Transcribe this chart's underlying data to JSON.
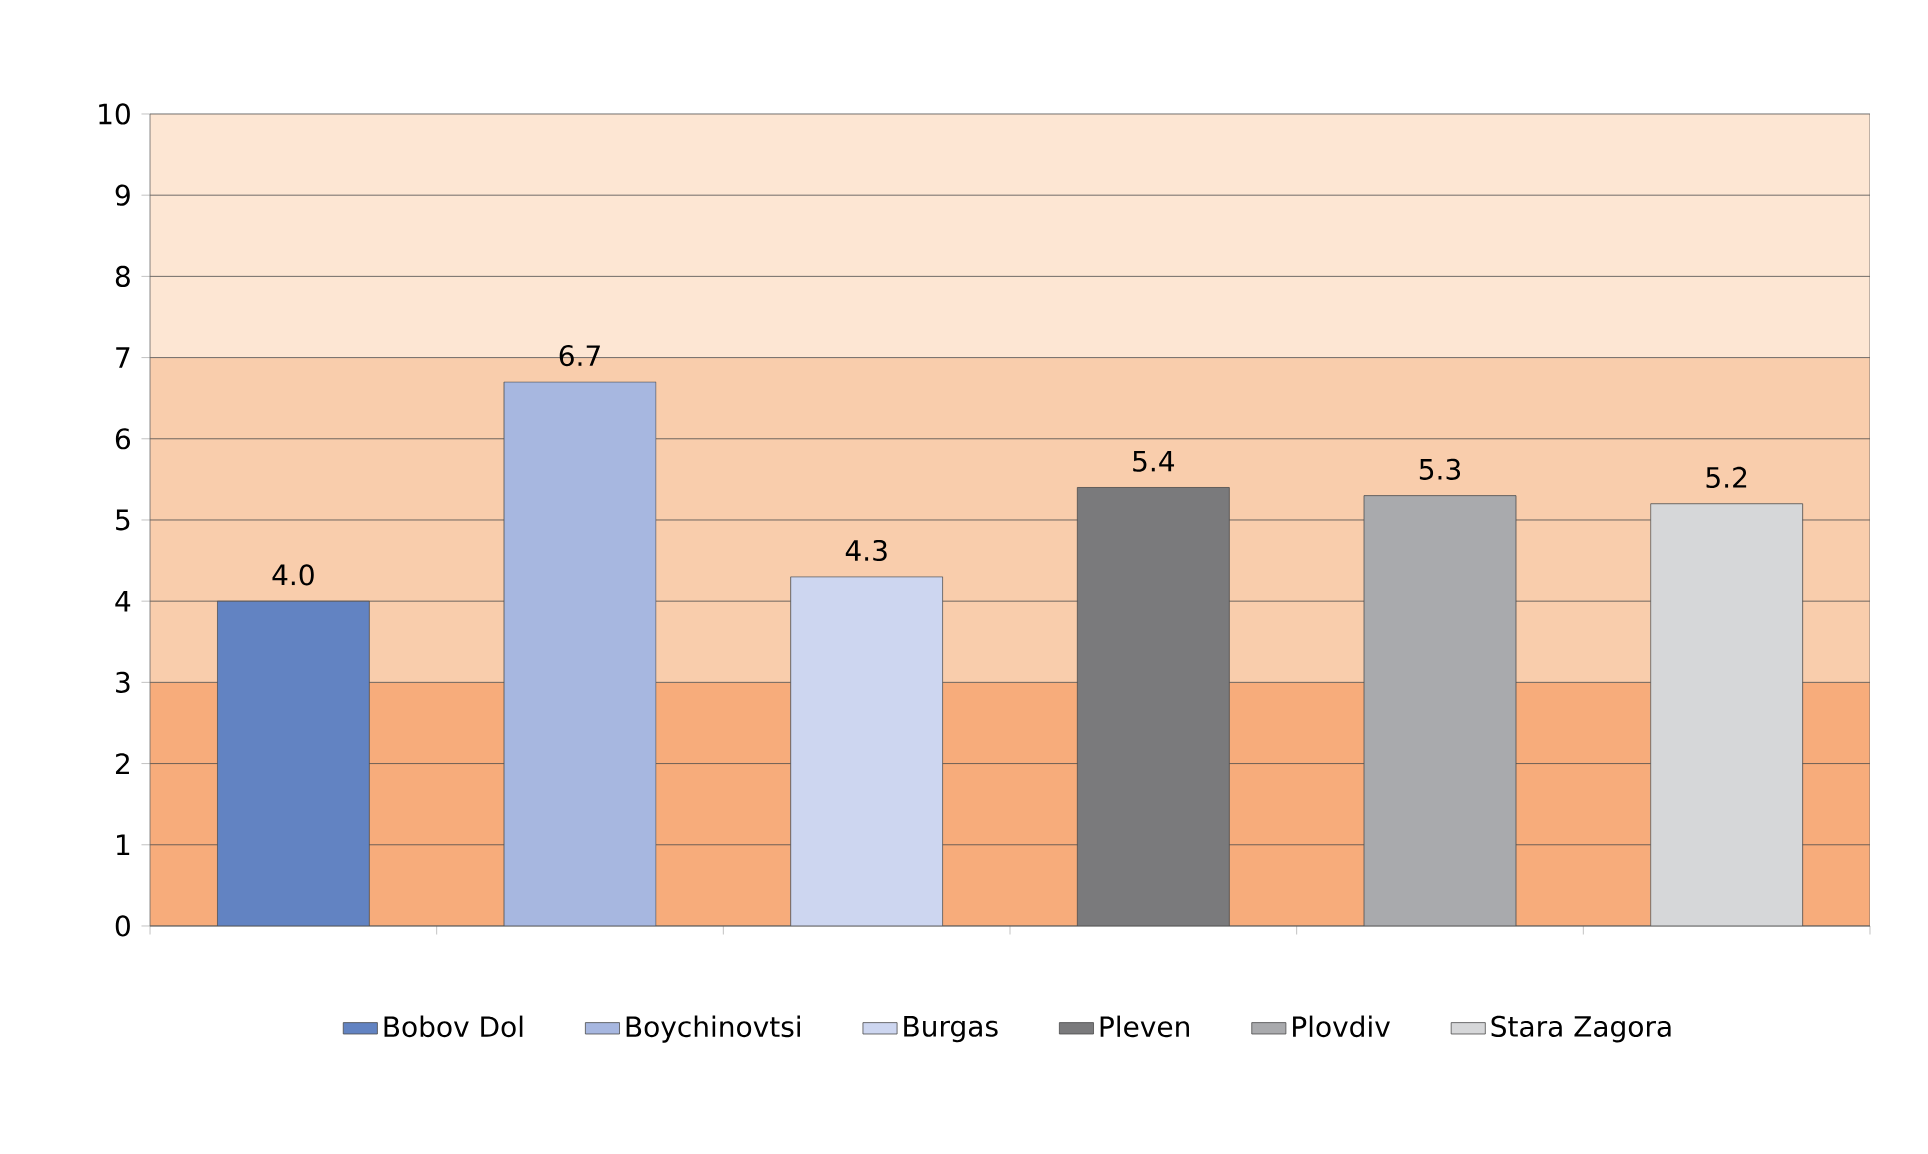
{
  "chart_data": {
    "type": "bar",
    "categories": [
      null,
      null,
      null,
      null,
      null,
      null
    ],
    "series": [
      {
        "name": "Bobov Dol",
        "color": "#6283c2",
        "values": [
          4.0,
          null,
          null,
          null,
          null,
          null
        ],
        "value_labels": [
          "4.0",
          null,
          null,
          null,
          null,
          null
        ]
      },
      {
        "name": "Boychinovtsi",
        "color": "#a7b7e0",
        "values": [
          null,
          6.7,
          null,
          null,
          null,
          null
        ],
        "value_labels": [
          null,
          "6.7",
          null,
          null,
          null,
          null
        ]
      },
      {
        "name": "Burgas",
        "color": "#cdd6f0",
        "values": [
          null,
          null,
          4.3,
          null,
          null,
          null
        ],
        "value_labels": [
          null,
          null,
          "4.3",
          null,
          null,
          null
        ]
      },
      {
        "name": "Pleven",
        "color": "#7a7a7c",
        "values": [
          null,
          null,
          null,
          5.4,
          null,
          null
        ],
        "value_labels": [
          null,
          null,
          null,
          "5.4",
          null,
          null
        ]
      },
      {
        "name": "Plovdiv",
        "color": "#a9aaad",
        "values": [
          null,
          null,
          null,
          null,
          5.3,
          null
        ],
        "value_labels": [
          null,
          null,
          null,
          null,
          "5.3",
          null
        ]
      },
      {
        "name": "Stara Zagora",
        "color": "#d6d7d9",
        "values": [
          null,
          null,
          null,
          null,
          null,
          5.2
        ],
        "value_labels": [
          null,
          null,
          null,
          null,
          null,
          "5.2"
        ]
      }
    ],
    "ylim": [
      0,
      10
    ],
    "yticks": [
      0,
      1,
      2,
      3,
      4,
      5,
      6,
      7,
      8,
      9,
      10
    ],
    "bands": [
      {
        "axis": "y",
        "from": 0,
        "to": 3,
        "color": "#f7ac7b"
      },
      {
        "axis": "y",
        "from": 3,
        "to": 7,
        "color": "#f9cdac"
      },
      {
        "axis": "y",
        "from": 7,
        "to": 10,
        "color": "#fde6d3"
      }
    ],
    "grid": "y",
    "legend": "bottom"
  }
}
